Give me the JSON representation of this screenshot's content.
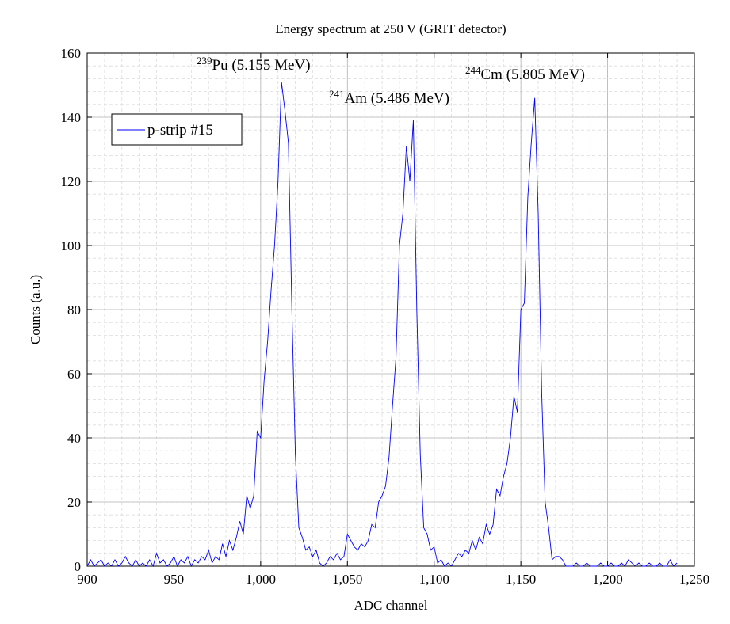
{
  "chart_data": {
    "type": "line",
    "title": "Energy spectrum at 250 V (GRIT detector)",
    "xlabel": "ADC channel",
    "ylabel": "Counts (a.u.)",
    "xlim": [
      900,
      1250
    ],
    "ylim": [
      0,
      160
    ],
    "xticks": [
      900,
      950,
      {
        "value": 1000,
        "label": "1,000"
      },
      {
        "value": 1050,
        "label": "1,050"
      },
      {
        "value": 1100,
        "label": "1,100"
      },
      {
        "value": 1150,
        "label": "1,150"
      },
      {
        "value": 1200,
        "label": "1,200"
      },
      {
        "value": 1250,
        "label": "1,250"
      }
    ],
    "yticks": [
      0,
      20,
      40,
      60,
      80,
      100,
      120,
      140,
      160
    ],
    "xminor": [
      900,
      910,
      920,
      930,
      940,
      950,
      960,
      970,
      980,
      990,
      1000,
      1010,
      1020,
      1030,
      1040,
      1050,
      1060,
      1070,
      1080,
      1090,
      1100,
      1110,
      1120,
      1130,
      1140,
      1150,
      1160,
      1170,
      1180,
      1190,
      1200,
      1210,
      1220,
      1230,
      1240,
      1250
    ],
    "yminor": [
      0,
      4,
      8,
      12,
      16,
      20,
      24,
      28,
      32,
      36,
      40,
      44,
      48,
      52,
      56,
      60,
      64,
      68,
      72,
      76,
      80,
      84,
      88,
      92,
      96,
      100,
      104,
      108,
      112,
      116,
      120,
      124,
      128,
      132,
      136,
      140,
      144,
      148,
      152,
      156,
      160
    ],
    "grid": true,
    "legend": "upper-left",
    "annotations": [
      {
        "sup": "239",
        "text": "Pu (5.155 MeV)"
      },
      {
        "sup": "241",
        "text": "Am (5.486 MeV)"
      },
      {
        "sup": "244",
        "text": "Cm (5.805 MeV)"
      }
    ],
    "x": [
      900,
      902,
      904,
      906,
      908,
      910,
      912,
      914,
      916,
      918,
      920,
      922,
      924,
      926,
      928,
      930,
      932,
      934,
      936,
      938,
      940,
      942,
      944,
      946,
      948,
      950,
      952,
      954,
      956,
      958,
      960,
      962,
      964,
      966,
      968,
      970,
      972,
      974,
      976,
      978,
      980,
      982,
      984,
      986,
      988,
      990,
      992,
      994,
      996,
      998,
      1000,
      1002,
      1004,
      1006,
      1008,
      1010,
      1012,
      1014,
      1016,
      1018,
      1020,
      1022,
      1024,
      1026,
      1028,
      1030,
      1032,
      1034,
      1036,
      1038,
      1040,
      1042,
      1044,
      1046,
      1048,
      1050,
      1052,
      1054,
      1056,
      1058,
      1060,
      1062,
      1064,
      1066,
      1068,
      1070,
      1072,
      1074,
      1076,
      1078,
      1080,
      1082,
      1084,
      1086,
      1088,
      1090,
      1092,
      1094,
      1096,
      1098,
      1100,
      1102,
      1104,
      1106,
      1108,
      1110,
      1112,
      1114,
      1116,
      1118,
      1120,
      1122,
      1124,
      1126,
      1128,
      1130,
      1132,
      1134,
      1136,
      1138,
      1140,
      1142,
      1144,
      1146,
      1148,
      1150,
      1152,
      1154,
      1156,
      1158,
      1160,
      1162,
      1164,
      1166,
      1168,
      1170,
      1172,
      1174,
      1176,
      1178,
      1180,
      1182,
      1184,
      1186,
      1188,
      1190,
      1192,
      1194,
      1196,
      1198,
      1200,
      1202,
      1204,
      1206,
      1208,
      1210,
      1212,
      1214,
      1216,
      1218,
      1220,
      1222,
      1224,
      1226,
      1228,
      1230,
      1232,
      1234,
      1236,
      1238,
      1240
    ],
    "series": [
      {
        "name": "p-strip #15",
        "color": "#0000ff",
        "values": [
          0,
          2,
          0,
          1,
          2,
          0,
          1,
          0,
          2,
          0,
          1,
          3,
          1,
          0,
          2,
          0,
          1,
          0,
          2,
          0,
          4,
          1,
          2,
          0,
          1,
          3,
          0,
          2,
          1,
          3,
          0,
          2,
          1,
          3,
          2,
          5,
          1,
          3,
          2,
          7,
          3,
          8,
          5,
          9,
          14,
          10,
          22,
          18,
          22,
          42,
          40,
          58,
          70,
          86,
          100,
          120,
          151,
          142,
          132,
          80,
          35,
          12,
          9,
          5,
          6,
          3,
          5,
          1,
          0,
          1,
          3,
          2,
          4,
          2,
          3,
          10,
          8,
          6,
          5,
          7,
          6,
          8,
          13,
          12,
          20,
          22,
          25,
          34,
          50,
          65,
          100,
          110,
          131,
          120,
          139,
          80,
          35,
          12,
          10,
          5,
          6,
          1,
          2,
          0,
          1,
          0,
          2,
          4,
          3,
          5,
          4,
          8,
          5,
          9,
          7,
          13,
          10,
          13,
          24,
          22,
          28,
          32,
          40,
          53,
          48,
          80,
          82,
          115,
          132,
          146,
          110,
          54,
          20,
          12,
          2,
          3,
          3,
          2,
          0,
          0,
          0,
          1,
          0,
          0,
          1,
          0,
          0,
          0,
          1,
          0,
          0,
          1,
          0,
          0,
          1,
          0,
          2,
          1,
          0,
          1,
          0,
          0,
          1,
          0,
          0,
          1,
          0,
          0,
          2,
          0,
          1
        ]
      }
    ]
  }
}
